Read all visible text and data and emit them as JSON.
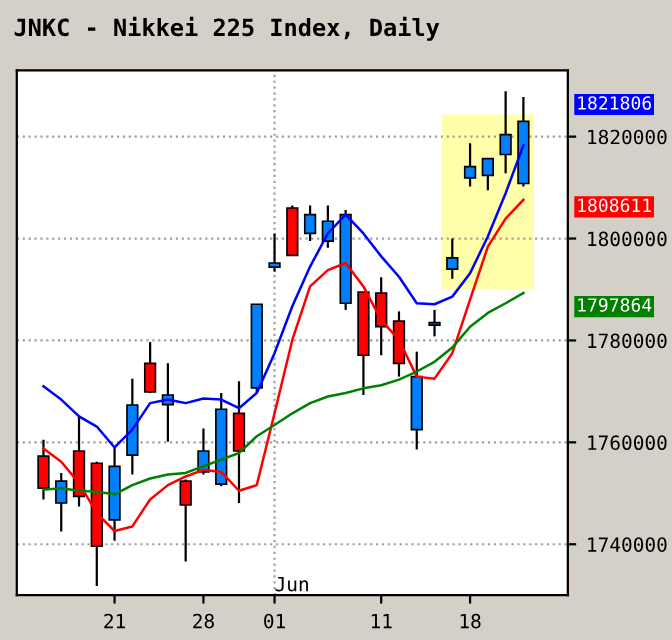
{
  "chart_data": {
    "type": "candlestick",
    "title": "JNKC - Nikkei 225 Index, Daily",
    "categories": [
      null,
      null,
      null,
      null,
      null,
      "21",
      null,
      null,
      null,
      null,
      "28",
      null,
      null,
      null,
      "01",
      null,
      null,
      null,
      null,
      null,
      "11",
      null,
      null,
      null,
      null,
      "18",
      null,
      null,
      null,
      null,
      null
    ],
    "ohlc": [
      null,
      [
        1757300,
        1760500,
        1748800,
        1751000
      ],
      [
        1748100,
        1754000,
        1742500,
        1752400
      ],
      [
        1758300,
        1765100,
        1747400,
        1749400
      ],
      [
        1755900,
        1756200,
        1731800,
        1739600
      ],
      [
        1744800,
        1759200,
        1740700,
        1755300
      ],
      [
        1757500,
        1772500,
        1753700,
        1767300
      ],
      [
        1775500,
        1779700,
        1769700,
        1769900
      ],
      [
        1767400,
        1775500,
        1760100,
        1769300
      ],
      [
        1752400,
        1752700,
        1736600,
        1747700
      ],
      [
        1754200,
        1762700,
        1753700,
        1758300
      ],
      [
        1751800,
        1769700,
        1751400,
        1766500
      ],
      [
        1765700,
        1772000,
        1748100,
        1758300
      ],
      [
        1770700,
        1787100,
        1769700,
        1787100
      ],
      [
        1794400,
        1801000,
        1793500,
        1795200
      ],
      [
        1806000,
        1806500,
        1796700,
        1796700
      ],
      [
        1801000,
        1806500,
        1799500,
        1804700
      ],
      [
        1799500,
        1806500,
        1798200,
        1803400
      ],
      [
        1787300,
        1805600,
        1786000,
        1804700
      ],
      [
        1789500,
        1789500,
        1769300,
        1777100
      ],
      [
        1789300,
        1792400,
        1777100,
        1782700
      ],
      [
        1783800,
        1785700,
        1772900,
        1775500
      ],
      [
        1762500,
        1777800,
        1758600,
        1772900
      ],
      [
        1783000,
        1786000,
        1780800,
        1783500
      ],
      [
        1794000,
        1800000,
        1792100,
        1796200
      ],
      [
        1811900,
        1818700,
        1810200,
        1814100
      ],
      [
        1812400,
        1815700,
        1809500,
        1815700
      ],
      [
        1816500,
        1828900,
        1812800,
        1820400
      ],
      [
        1810800,
        1827800,
        1810200,
        1823000
      ],
      null,
      null
    ],
    "colors": [
      null,
      "#ff0000",
      "#0080ff",
      "#ff0000",
      "#ff0000",
      "#0080ff",
      "#0080ff",
      "#ff0000",
      "#0080ff",
      "#ff0000",
      "#0080ff",
      "#0080ff",
      "#ff0000",
      "#0080ff",
      "#0080ff",
      "#ff0000",
      "#0080ff",
      "#0080ff",
      "#0080ff",
      "#ff0000",
      "#ff0000",
      "#ff0000",
      "#0080ff",
      "#0080ff",
      "#0080ff",
      "#0080ff",
      "#0080ff",
      "#0080ff",
      "#0080ff",
      null,
      null
    ],
    "series": [
      {
        "type": "line",
        "color": "#0000ff",
        "values": [
          null,
          1771000,
          1768400,
          1765100,
          1763100,
          1759000,
          1762500,
          1767700,
          1768400,
          1767700,
          1768600,
          1768400,
          1766700,
          1769700,
          1777500,
          1786700,
          1794500,
          1801000,
          1804700,
          1801000,
          1796500,
          1792500,
          1787300,
          1787100,
          1788600,
          1793200,
          1800400,
          1808900,
          1818300,
          null,
          null
        ]
      },
      {
        "type": "line",
        "color": "#ff0000",
        "values": [
          null,
          1758800,
          1756200,
          1752000,
          1746100,
          1742600,
          1743500,
          1748800,
          1751600,
          1753300,
          1754600,
          1754200,
          1750500,
          1751600,
          1765700,
          1780100,
          1790600,
          1793800,
          1795200,
          1790600,
          1784000,
          1780100,
          1772900,
          1772500,
          1777500,
          1788000,
          1798400,
          1803900,
          1807600,
          null,
          null
        ]
      },
      {
        "type": "line",
        "color": "#008000",
        "values": [
          null,
          1750700,
          1751000,
          1750500,
          1750300,
          1749800,
          1751600,
          1752900,
          1753700,
          1754000,
          1755300,
          1756600,
          1757900,
          1761200,
          1763400,
          1765700,
          1767700,
          1769000,
          1769700,
          1770600,
          1771200,
          1772300,
          1773900,
          1775800,
          1778600,
          1782700,
          1785400,
          1787300,
          1789300,
          null,
          null
        ]
      }
    ],
    "ylim": [
      1730000,
      1833000
    ],
    "yticks": [
      1740000,
      1760000,
      1780000,
      1800000,
      1820000
    ],
    "grid": "y",
    "ref_lines": [
      {
        "axis": "x",
        "value": "01",
        "color": "#a0a0a0",
        "line_style": "dotted"
      }
    ],
    "annotations": [
      {
        "text": "Jun",
        "x": "01"
      },
      "1821806",
      "1808611",
      "1797864"
    ],
    "legend": false
  }
}
